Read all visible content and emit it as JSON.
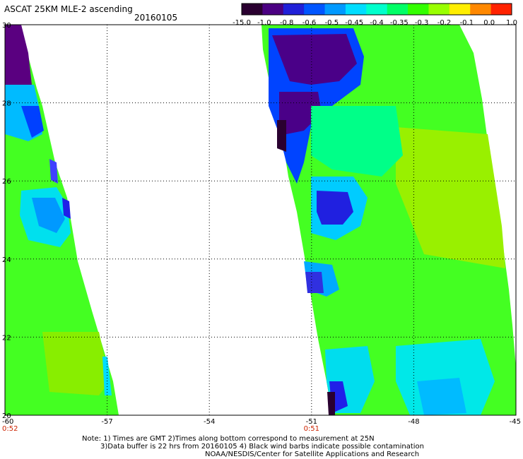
{
  "header": {
    "title": "ASCAT 25KM MLE-2 ascending",
    "date": "20160105"
  },
  "colorbar": {
    "tick_labels": [
      "-15.0",
      "-1.0",
      "-0.8",
      "-0.6",
      "-0.5",
      "-0.45",
      "-0.4",
      "-0.35",
      "-0.3",
      "-0.2",
      "-0.1",
      "0.0",
      "1.0"
    ],
    "colors": [
      "#2a0030",
      "#4b0082",
      "#2020d8",
      "#0055ff",
      "#0099ff",
      "#00ddff",
      "#00ffcc",
      "#00ff66",
      "#33ff00",
      "#99ff00",
      "#ffee00",
      "#ff8800",
      "#ff2200"
    ]
  },
  "map": {
    "lat_labels": [
      "30",
      "28",
      "26",
      "24",
      "22",
      "20"
    ],
    "lon_labels": [
      "-60",
      "-57",
      "-54",
      "-51",
      "-48",
      "-45"
    ],
    "time_labels": [
      "0:52",
      "0:51"
    ],
    "time_color": "#cc2200"
  },
  "notes": {
    "line1": "Note: 1) Times are GMT 2)Times along bottom correspond to measurement at 25N",
    "line2": "3)Data buffer is 22 hrs from 20160105 4) Black wind barbs indicate possible contamination",
    "line3": "NOAA/NESDIS/Center for Satellite Applications and Research"
  }
}
